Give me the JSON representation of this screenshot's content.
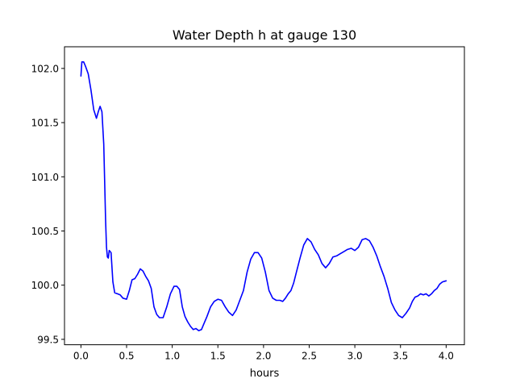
{
  "chart_data": {
    "type": "line",
    "title": "Water Depth h at gauge 130",
    "xlabel": "hours",
    "ylabel": "",
    "xlim": [
      -0.18,
      4.2
    ],
    "ylim": [
      99.45,
      102.2
    ],
    "grid": false,
    "xticks": [
      0.0,
      0.5,
      1.0,
      1.5,
      2.0,
      2.5,
      3.0,
      3.5,
      4.0
    ],
    "xtick_labels": [
      "0.0",
      "0.5",
      "1.0",
      "1.5",
      "2.0",
      "2.5",
      "3.0",
      "3.5",
      "4.0"
    ],
    "yticks": [
      99.5,
      100.0,
      100.5,
      101.0,
      101.5,
      102.0
    ],
    "ytick_labels": [
      "99.5",
      "100.0",
      "100.5",
      "101.0",
      "101.5",
      "102.0"
    ],
    "series": [
      {
        "color": "#0000ff",
        "x": [
          0.0,
          0.01,
          0.03,
          0.05,
          0.08,
          0.11,
          0.14,
          0.17,
          0.19,
          0.21,
          0.23,
          0.25,
          0.26,
          0.27,
          0.28,
          0.29,
          0.3,
          0.31,
          0.33,
          0.35,
          0.37,
          0.4,
          0.43,
          0.46,
          0.5,
          0.53,
          0.56,
          0.59,
          0.62,
          0.65,
          0.68,
          0.71,
          0.74,
          0.77,
          0.8,
          0.83,
          0.86,
          0.9,
          0.94,
          0.98,
          1.02,
          1.05,
          1.08,
          1.11,
          1.14,
          1.17,
          1.2,
          1.23,
          1.26,
          1.29,
          1.32,
          1.35,
          1.38,
          1.42,
          1.46,
          1.5,
          1.54,
          1.58,
          1.62,
          1.66,
          1.7,
          1.74,
          1.78,
          1.82,
          1.86,
          1.9,
          1.94,
          1.98,
          2.02,
          2.06,
          2.1,
          2.14,
          2.18,
          2.21,
          2.24,
          2.27,
          2.3,
          2.33,
          2.36,
          2.4,
          2.44,
          2.48,
          2.52,
          2.56,
          2.6,
          2.64,
          2.68,
          2.72,
          2.76,
          2.8,
          2.84,
          2.88,
          2.92,
          2.96,
          3.0,
          3.04,
          3.08,
          3.12,
          3.16,
          3.2,
          3.24,
          3.28,
          3.32,
          3.36,
          3.4,
          3.44,
          3.48,
          3.52,
          3.56,
          3.6,
          3.63,
          3.66,
          3.69,
          3.72,
          3.75,
          3.78,
          3.81,
          3.84,
          3.87,
          3.9,
          3.93,
          3.96,
          4.0
        ],
        "y": [
          101.93,
          102.06,
          102.06,
          102.02,
          101.95,
          101.8,
          101.62,
          101.54,
          101.6,
          101.65,
          101.6,
          101.3,
          100.95,
          100.6,
          100.35,
          100.26,
          100.25,
          100.32,
          100.3,
          100.03,
          99.93,
          99.92,
          99.91,
          99.88,
          99.87,
          99.95,
          100.05,
          100.06,
          100.1,
          100.15,
          100.13,
          100.08,
          100.04,
          99.97,
          99.8,
          99.73,
          99.7,
          99.7,
          99.8,
          99.92,
          99.99,
          99.99,
          99.96,
          99.8,
          99.71,
          99.66,
          99.62,
          99.59,
          99.6,
          99.58,
          99.59,
          99.65,
          99.71,
          99.8,
          99.85,
          99.87,
          99.86,
          99.8,
          99.75,
          99.72,
          99.77,
          99.86,
          99.95,
          100.12,
          100.24,
          100.3,
          100.3,
          100.25,
          100.12,
          99.95,
          99.88,
          99.86,
          99.86,
          99.85,
          99.88,
          99.92,
          99.95,
          100.02,
          100.12,
          100.25,
          100.37,
          100.43,
          100.4,
          100.33,
          100.28,
          100.2,
          100.16,
          100.2,
          100.26,
          100.27,
          100.29,
          100.31,
          100.33,
          100.34,
          100.32,
          100.35,
          100.42,
          100.43,
          100.41,
          100.35,
          100.27,
          100.17,
          100.08,
          99.97,
          99.84,
          99.77,
          99.72,
          99.7,
          99.74,
          99.79,
          99.85,
          99.89,
          99.9,
          99.92,
          99.91,
          99.92,
          99.9,
          99.92,
          99.95,
          99.97,
          100.01,
          100.03,
          100.04
        ]
      }
    ]
  }
}
